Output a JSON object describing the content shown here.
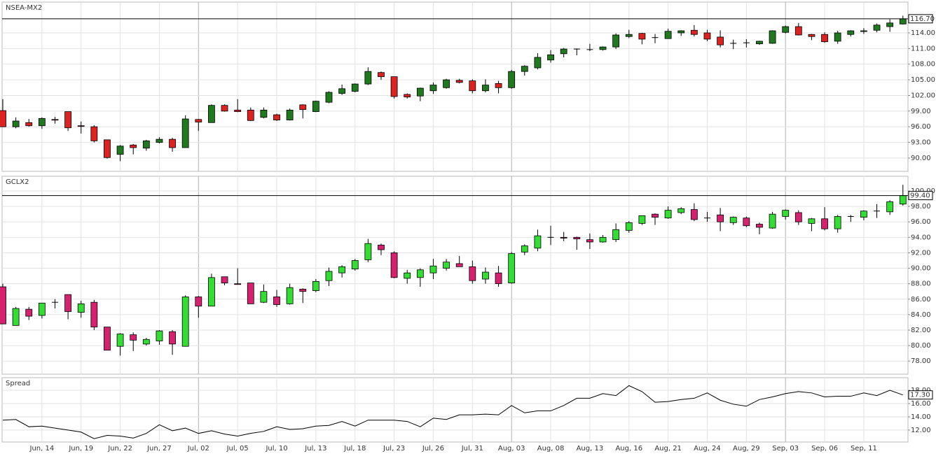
{
  "chart_data": [
    {
      "type": "candlestick",
      "title": "NSEA-MX2",
      "open": [
        99.1,
        96.0,
        96.8,
        96.2,
        97.4,
        98.9,
        96.2,
        96.0,
        93.5,
        90.7,
        92.5,
        91.9,
        93.0,
        93.6,
        92.0,
        97.4,
        96.8,
        100.1,
        99.2,
        99.2,
        97.8,
        98.3,
        97.3,
        100.2,
        98.9,
        100.7,
        102.4,
        102.8,
        104.2,
        106.4,
        105.6,
        102.2,
        101.9,
        102.9,
        103.5,
        104.9,
        104.8,
        102.9,
        104.3,
        103.5,
        106.6,
        107.3,
        108.8,
        110.0,
        110.9,
        110.8,
        110.8,
        111.3,
        113.3,
        113.9,
        113.1,
        112.9,
        114.0,
        114.5,
        114.0,
        113.2,
        112.0,
        112.1,
        111.9,
        112.0,
        114.1,
        115.2,
        113.7,
        113.7,
        112.4,
        113.7,
        114.3,
        114.5,
        115.2,
        115.7
      ],
      "high": [
        101.3,
        97.8,
        97.5,
        97.8,
        97.9,
        98.9,
        97.0,
        96.3,
        93.5,
        92.5,
        92.7,
        93.5,
        94.0,
        93.9,
        98.2,
        97.5,
        100.3,
        100.3,
        101.3,
        99.7,
        99.7,
        98.5,
        99.5,
        100.3,
        101.0,
        102.8,
        104.1,
        104.3,
        107.4,
        106.6,
        105.6,
        102.4,
        103.5,
        104.5,
        105.2,
        105.2,
        105.1,
        105.1,
        104.8,
        106.9,
        107.8,
        110.1,
        110.7,
        111.1,
        111.0,
        111.9,
        111.4,
        113.9,
        114.6,
        114.0,
        113.8,
        114.8,
        114.5,
        115.5,
        114.6,
        114.5,
        112.7,
        112.8,
        112.5,
        114.5,
        115.4,
        115.9,
        113.8,
        114.1,
        114.4,
        114.5,
        114.9,
        115.8,
        116.6,
        117.3
      ],
      "low": [
        96.0,
        95.7,
        96.0,
        95.6,
        96.6,
        95.2,
        94.7,
        93.0,
        89.9,
        89.4,
        90.7,
        91.4,
        92.8,
        91.2,
        92.0,
        95.2,
        96.8,
        98.9,
        98.8,
        97.1,
        97.6,
        97.1,
        97.2,
        97.6,
        98.8,
        100.5,
        102.1,
        102.6,
        104.0,
        105.0,
        101.4,
        101.4,
        100.9,
        102.3,
        103.3,
        104.3,
        102.4,
        102.6,
        102.4,
        103.3,
        105.8,
        107.0,
        108.3,
        109.3,
        109.7,
        110.5,
        110.6,
        110.9,
        113.0,
        111.8,
        112.0,
        112.9,
        113.4,
        113.3,
        112.4,
        111.2,
        110.9,
        111.2,
        111.7,
        111.9,
        113.9,
        113.5,
        112.6,
        112.1,
        111.9,
        113.3,
        113.8,
        114.1,
        114.2,
        115.6
      ],
      "close": [
        96.0,
        97.1,
        96.2,
        97.6,
        97.3,
        95.8,
        96.1,
        93.3,
        90.1,
        92.3,
        92.0,
        93.3,
        93.6,
        92.0,
        97.5,
        96.9,
        100.1,
        99.0,
        98.9,
        97.2,
        99.2,
        97.3,
        99.2,
        99.3,
        100.9,
        102.6,
        103.3,
        104.2,
        106.6,
        105.6,
        101.8,
        101.7,
        103.4,
        104.0,
        105.0,
        104.5,
        102.9,
        104.0,
        103.5,
        106.6,
        107.6,
        109.3,
        109.8,
        110.9,
        110.9,
        110.8,
        111.3,
        113.6,
        113.7,
        112.8,
        113.1,
        114.3,
        114.4,
        113.7,
        112.8,
        111.7,
        112.0,
        112.1,
        112.4,
        114.4,
        115.2,
        113.6,
        113.3,
        112.3,
        114.0,
        114.4,
        114.4,
        115.5,
        115.9,
        116.7
      ],
      "up_color": "#1f7a1f",
      "down_color": "#dd2222",
      "ylim": [
        87.45,
        119.9
      ],
      "yticks": [
        {
          "value": 90,
          "label": "90.00"
        },
        {
          "value": 93,
          "label": "93.00"
        },
        {
          "value": 96,
          "label": "96.00"
        },
        {
          "value": 99,
          "label": "99.00"
        },
        {
          "value": 102,
          "label": "102.00"
        },
        {
          "value": 105,
          "label": "105.00"
        },
        {
          "value": 108,
          "label": "108.00"
        },
        {
          "value": 111,
          "label": "111.00"
        },
        {
          "value": 114,
          "label": "114.00"
        }
      ],
      "last": {
        "value": 116.7,
        "label": "116.70"
      },
      "last_line": true,
      "grid": true
    },
    {
      "type": "candlestick",
      "title": "GCLX2",
      "open": [
        87.6,
        82.6,
        84.7,
        83.9,
        85.6,
        86.6,
        84.3,
        85.6,
        82.4,
        79.9,
        81.4,
        80.2,
        80.6,
        81.8,
        79.9,
        86.3,
        85.1,
        88.9,
        88.0,
        88.1,
        85.6,
        86.3,
        85.4,
        87.3,
        87.1,
        88.4,
        89.4,
        89.9,
        91.1,
        93.0,
        92.0,
        88.7,
        88.8,
        89.4,
        90.0,
        90.6,
        90.2,
        88.6,
        89.4,
        88.1,
        92.1,
        92.6,
        94.0,
        94.0,
        94.0,
        93.7,
        93.4,
        93.7,
        94.9,
        95.8,
        97.0,
        96.5,
        97.2,
        97.6,
        96.5,
        96.9,
        95.9,
        96.5,
        95.7,
        95.2,
        96.7,
        97.2,
        95.8,
        96.4,
        95.1,
        96.7,
        96.6,
        97.4,
        97.3,
        98.3
      ],
      "high": [
        88.0,
        85.0,
        85.0,
        85.5,
        86.0,
        86.6,
        85.8,
        85.9,
        82.4,
        81.6,
        81.7,
        81.0,
        82.0,
        82.0,
        86.5,
        86.4,
        89.3,
        88.9,
        90.0,
        88.1,
        87.9,
        87.2,
        88.0,
        87.4,
        88.6,
        90.1,
        90.4,
        91.2,
        93.8,
        93.2,
        92.2,
        89.8,
        90.0,
        91.2,
        91.2,
        91.6,
        91.0,
        90.1,
        90.3,
        92.1,
        93.1,
        95.0,
        95.5,
        94.7,
        94.1,
        94.5,
        94.3,
        95.8,
        96.1,
        96.8,
        97.1,
        98.0,
        97.9,
        98.4,
        97.3,
        97.8,
        96.7,
        96.7,
        95.9,
        97.3,
        97.6,
        97.5,
        96.5,
        97.9,
        96.9,
        96.9,
        97.5,
        98.3,
        98.8,
        100.8
      ],
      "low": [
        82.8,
        82.6,
        83.3,
        83.5,
        84.8,
        83.4,
        83.6,
        82.0,
        79.4,
        78.7,
        79.3,
        80.0,
        80.1,
        78.8,
        79.9,
        83.6,
        85.1,
        87.8,
        87.9,
        85.4,
        85.5,
        85.0,
        85.3,
        85.5,
        86.9,
        87.7,
        88.8,
        89.7,
        90.8,
        91.7,
        88.7,
        88.0,
        87.6,
        88.6,
        89.7,
        90.2,
        88.0,
        88.0,
        87.6,
        88.0,
        91.7,
        92.2,
        93.0,
        93.5,
        92.4,
        92.5,
        93.3,
        93.4,
        94.6,
        95.6,
        95.6,
        96.4,
        97.0,
        96.1,
        96.0,
        94.8,
        95.6,
        95.3,
        94.4,
        95.1,
        96.3,
        95.6,
        94.8,
        94.9,
        94.6,
        96.0,
        96.2,
        96.5,
        96.9,
        98.1
      ],
      "close": [
        82.8,
        84.8,
        83.8,
        85.5,
        85.6,
        84.4,
        85.4,
        82.4,
        79.4,
        81.5,
        80.7,
        80.8,
        81.9,
        80.2,
        86.3,
        85.1,
        88.8,
        88.1,
        87.9,
        85.4,
        87.0,
        85.3,
        87.5,
        87.0,
        88.3,
        89.6,
        90.2,
        91.0,
        93.2,
        92.4,
        88.8,
        89.4,
        89.8,
        90.3,
        90.8,
        90.2,
        88.4,
        89.5,
        88.0,
        91.9,
        92.9,
        94.2,
        94.0,
        93.9,
        93.8,
        93.4,
        94.0,
        95.0,
        95.9,
        96.8,
        96.6,
        97.5,
        97.7,
        96.3,
        96.5,
        96.0,
        96.6,
        95.5,
        95.3,
        97.0,
        97.5,
        96.0,
        96.4,
        95.1,
        96.7,
        96.7,
        97.4,
        97.4,
        98.6,
        99.4
      ],
      "up_color": "#33dd33",
      "down_color": "#d6226e",
      "ylim": [
        76.3,
        101.9
      ],
      "yticks": [
        {
          "value": 78,
          "label": "78.00"
        },
        {
          "value": 80,
          "label": "80.00"
        },
        {
          "value": 82,
          "label": "82.00"
        },
        {
          "value": 84,
          "label": "84.00"
        },
        {
          "value": 86,
          "label": "86.00"
        },
        {
          "value": 88,
          "label": "88.00"
        },
        {
          "value": 90,
          "label": "90.00"
        },
        {
          "value": 92,
          "label": "92.00"
        },
        {
          "value": 94,
          "label": "94.00"
        },
        {
          "value": 96,
          "label": "96.00"
        },
        {
          "value": 98,
          "label": "98.00"
        },
        {
          "value": 100,
          "label": "100.00"
        }
      ],
      "last": {
        "value": 99.4,
        "label": "99.40"
      },
      "last_line": true,
      "grid": true
    },
    {
      "type": "line",
      "title": "Spread",
      "categories": [
        null,
        null,
        null,
        "Jun, 14",
        null,
        null,
        "Jun, 19",
        null,
        null,
        "Jun, 22",
        null,
        null,
        "Jun, 27",
        null,
        null,
        "Jul, 02",
        null,
        null,
        "Jul, 05",
        null,
        null,
        "Jul, 10",
        null,
        null,
        "Jul, 13",
        null,
        null,
        "Jul, 18",
        null,
        null,
        "Jul, 23",
        null,
        null,
        "Jul, 26",
        null,
        null,
        "Jul, 31",
        null,
        null,
        "Aug, 03",
        null,
        null,
        "Aug, 08",
        null,
        null,
        "Aug, 13",
        null,
        null,
        "Aug, 16",
        null,
        null,
        "Aug, 21",
        null,
        null,
        "Aug, 24",
        null,
        null,
        "Aug, 29",
        null,
        null,
        "Sep, 03",
        null,
        null,
        "Sep, 06",
        null,
        null,
        "Sep, 11",
        null,
        null,
        null
      ],
      "values": [
        13.5,
        13.6,
        12.5,
        12.6,
        12.3,
        12.0,
        11.7,
        10.7,
        11.2,
        11.1,
        10.8,
        11.5,
        12.8,
        11.9,
        12.3,
        11.5,
        11.9,
        11.4,
        11.1,
        11.5,
        11.8,
        12.5,
        12.1,
        12.2,
        12.6,
        12.7,
        13.3,
        12.6,
        13.5,
        13.5,
        13.5,
        13.3,
        12.5,
        13.8,
        13.6,
        14.3,
        14.3,
        14.4,
        14.3,
        15.7,
        14.6,
        14.9,
        14.9,
        15.7,
        16.8,
        16.8,
        17.5,
        17.2,
        18.7,
        17.8,
        16.2,
        16.3,
        16.6,
        16.8,
        17.6,
        16.5,
        15.9,
        15.6,
        16.6,
        17.0,
        17.5,
        17.8,
        17.6,
        17.0,
        17.1,
        17.1,
        17.6,
        17.2,
        18.0,
        17.3
      ],
      "color": "#000000",
      "ylim": [
        10.2,
        19.9
      ],
      "yticks": [
        {
          "value": 12,
          "label": "12.00"
        },
        {
          "value": 14,
          "label": "14.00"
        },
        {
          "value": 16,
          "label": "16.00"
        },
        {
          "value": 18,
          "label": "18.00"
        }
      ],
      "last": {
        "value": 17.3,
        "label": "17.30"
      },
      "last_line": false,
      "grid": true
    }
  ]
}
